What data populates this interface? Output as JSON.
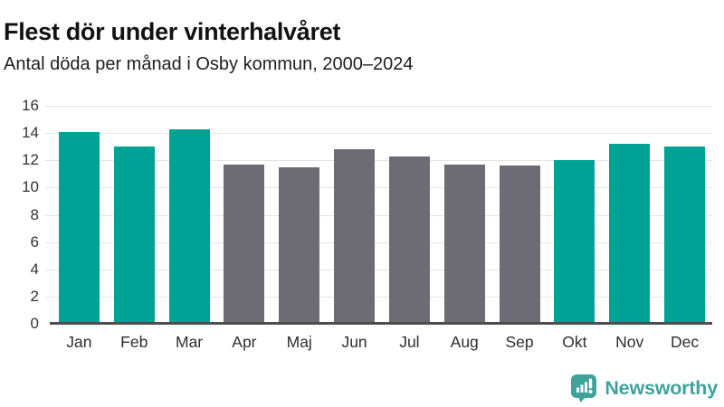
{
  "header": {
    "title": "Flest dör under vinterhalvåret",
    "subtitle": "Antal döda per månad i Osby kommun, 2000–2024"
  },
  "chart_data": {
    "type": "bar",
    "title": "Flest dör under vinterhalvåret",
    "subtitle": "Antal döda per månad i Osby kommun, 2000–2024",
    "categories": [
      "Jan",
      "Feb",
      "Mar",
      "Apr",
      "Maj",
      "Jun",
      "Jul",
      "Aug",
      "Sep",
      "Okt",
      "Nov",
      "Dec"
    ],
    "values": [
      14.1,
      13.0,
      14.3,
      11.7,
      11.5,
      12.8,
      12.3,
      11.7,
      11.6,
      12.0,
      13.2,
      13.0
    ],
    "bar_colors": [
      "#00a296",
      "#00a296",
      "#00a296",
      "#6d6c75",
      "#6d6c75",
      "#6d6c75",
      "#6d6c75",
      "#6d6c75",
      "#6d6c75",
      "#00a296",
      "#00a296",
      "#00a296"
    ],
    "highlight_color": "#00a296",
    "base_color": "#6d6c75",
    "highlighted_categories": [
      "Jan",
      "Feb",
      "Mar",
      "Okt",
      "Nov",
      "Dec"
    ],
    "xlabel": "",
    "ylabel": "",
    "ylim": [
      0,
      16
    ],
    "yticks": [
      0,
      2,
      4,
      6,
      8,
      10,
      12,
      14,
      16
    ],
    "grid": true,
    "legend": false
  },
  "footer": {
    "brand": "Newsworthy",
    "brand_color": "#3fa39c",
    "logo_icon": "bar-chart-speech-bubble"
  }
}
